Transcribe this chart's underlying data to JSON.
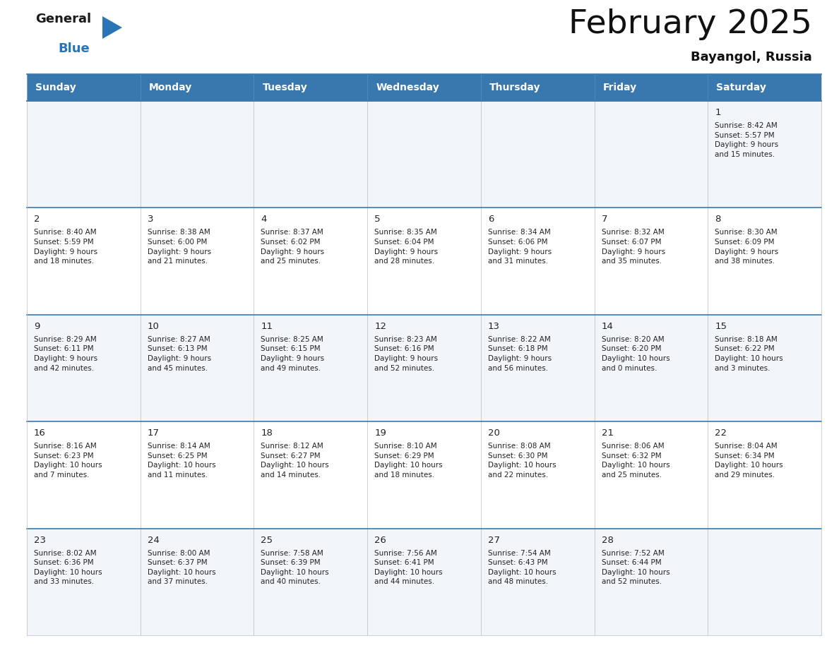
{
  "title": "February 2025",
  "subtitle": "Bayangol, Russia",
  "header_bg_color": "#3878ae",
  "header_text_color": "#ffffff",
  "cell_bg_even": "#f2f6fa",
  "cell_bg_odd": "#ffffff",
  "border_color": "#3878ae",
  "thin_border_color": "#bbbbbb",
  "text_color": "#222222",
  "days_of_week": [
    "Sunday",
    "Monday",
    "Tuesday",
    "Wednesday",
    "Thursday",
    "Friday",
    "Saturday"
  ],
  "weeks": [
    [
      {
        "day": null,
        "info": null
      },
      {
        "day": null,
        "info": null
      },
      {
        "day": null,
        "info": null
      },
      {
        "day": null,
        "info": null
      },
      {
        "day": null,
        "info": null
      },
      {
        "day": null,
        "info": null
      },
      {
        "day": 1,
        "info": "Sunrise: 8:42 AM\nSunset: 5:57 PM\nDaylight: 9 hours\nand 15 minutes."
      }
    ],
    [
      {
        "day": 2,
        "info": "Sunrise: 8:40 AM\nSunset: 5:59 PM\nDaylight: 9 hours\nand 18 minutes."
      },
      {
        "day": 3,
        "info": "Sunrise: 8:38 AM\nSunset: 6:00 PM\nDaylight: 9 hours\nand 21 minutes."
      },
      {
        "day": 4,
        "info": "Sunrise: 8:37 AM\nSunset: 6:02 PM\nDaylight: 9 hours\nand 25 minutes."
      },
      {
        "day": 5,
        "info": "Sunrise: 8:35 AM\nSunset: 6:04 PM\nDaylight: 9 hours\nand 28 minutes."
      },
      {
        "day": 6,
        "info": "Sunrise: 8:34 AM\nSunset: 6:06 PM\nDaylight: 9 hours\nand 31 minutes."
      },
      {
        "day": 7,
        "info": "Sunrise: 8:32 AM\nSunset: 6:07 PM\nDaylight: 9 hours\nand 35 minutes."
      },
      {
        "day": 8,
        "info": "Sunrise: 8:30 AM\nSunset: 6:09 PM\nDaylight: 9 hours\nand 38 minutes."
      }
    ],
    [
      {
        "day": 9,
        "info": "Sunrise: 8:29 AM\nSunset: 6:11 PM\nDaylight: 9 hours\nand 42 minutes."
      },
      {
        "day": 10,
        "info": "Sunrise: 8:27 AM\nSunset: 6:13 PM\nDaylight: 9 hours\nand 45 minutes."
      },
      {
        "day": 11,
        "info": "Sunrise: 8:25 AM\nSunset: 6:15 PM\nDaylight: 9 hours\nand 49 minutes."
      },
      {
        "day": 12,
        "info": "Sunrise: 8:23 AM\nSunset: 6:16 PM\nDaylight: 9 hours\nand 52 minutes."
      },
      {
        "day": 13,
        "info": "Sunrise: 8:22 AM\nSunset: 6:18 PM\nDaylight: 9 hours\nand 56 minutes."
      },
      {
        "day": 14,
        "info": "Sunrise: 8:20 AM\nSunset: 6:20 PM\nDaylight: 10 hours\nand 0 minutes."
      },
      {
        "day": 15,
        "info": "Sunrise: 8:18 AM\nSunset: 6:22 PM\nDaylight: 10 hours\nand 3 minutes."
      }
    ],
    [
      {
        "day": 16,
        "info": "Sunrise: 8:16 AM\nSunset: 6:23 PM\nDaylight: 10 hours\nand 7 minutes."
      },
      {
        "day": 17,
        "info": "Sunrise: 8:14 AM\nSunset: 6:25 PM\nDaylight: 10 hours\nand 11 minutes."
      },
      {
        "day": 18,
        "info": "Sunrise: 8:12 AM\nSunset: 6:27 PM\nDaylight: 10 hours\nand 14 minutes."
      },
      {
        "day": 19,
        "info": "Sunrise: 8:10 AM\nSunset: 6:29 PM\nDaylight: 10 hours\nand 18 minutes."
      },
      {
        "day": 20,
        "info": "Sunrise: 8:08 AM\nSunset: 6:30 PM\nDaylight: 10 hours\nand 22 minutes."
      },
      {
        "day": 21,
        "info": "Sunrise: 8:06 AM\nSunset: 6:32 PM\nDaylight: 10 hours\nand 25 minutes."
      },
      {
        "day": 22,
        "info": "Sunrise: 8:04 AM\nSunset: 6:34 PM\nDaylight: 10 hours\nand 29 minutes."
      }
    ],
    [
      {
        "day": 23,
        "info": "Sunrise: 8:02 AM\nSunset: 6:36 PM\nDaylight: 10 hours\nand 33 minutes."
      },
      {
        "day": 24,
        "info": "Sunrise: 8:00 AM\nSunset: 6:37 PM\nDaylight: 10 hours\nand 37 minutes."
      },
      {
        "day": 25,
        "info": "Sunrise: 7:58 AM\nSunset: 6:39 PM\nDaylight: 10 hours\nand 40 minutes."
      },
      {
        "day": 26,
        "info": "Sunrise: 7:56 AM\nSunset: 6:41 PM\nDaylight: 10 hours\nand 44 minutes."
      },
      {
        "day": 27,
        "info": "Sunrise: 7:54 AM\nSunset: 6:43 PM\nDaylight: 10 hours\nand 48 minutes."
      },
      {
        "day": 28,
        "info": "Sunrise: 7:52 AM\nSunset: 6:44 PM\nDaylight: 10 hours\nand 52 minutes."
      },
      {
        "day": null,
        "info": null
      }
    ]
  ],
  "figwidth": 11.88,
  "figheight": 9.18,
  "dpi": 100
}
